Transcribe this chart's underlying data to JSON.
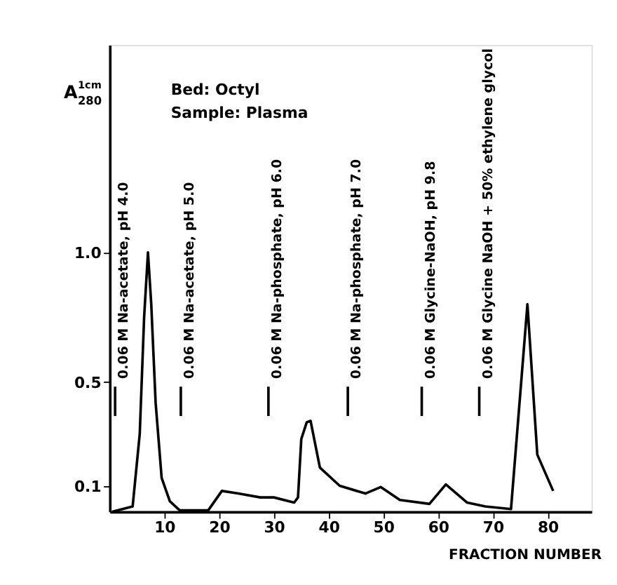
{
  "chart_data": {
    "type": "line",
    "title": "Bed: Octyl",
    "subtitle": "Sample: Plasma",
    "xlabel": "FRACTION NUMBER",
    "ylabel": "A$^{1cm}$$_{280}$",
    "x": [
      0.5,
      4.2,
      5.5,
      6.3,
      7.0,
      7.6,
      8.4,
      9.5,
      11.0,
      12.8,
      18.0,
      20.5,
      23.5,
      27.5,
      30.0,
      33.7,
      34.4,
      35.0,
      36.0,
      36.7,
      38.4,
      42.0,
      46.7,
      49.5,
      53.0,
      58.4,
      61.4,
      65.3,
      68.6,
      73.3,
      76.3,
      78.1,
      81.0
    ],
    "series": [
      {
        "color": "#000000",
        "values": [
          0.0,
          0.02,
          0.3,
          0.75,
          1.0,
          0.8,
          0.42,
          0.13,
          0.04,
          0.005,
          0.005,
          0.08,
          0.07,
          0.055,
          0.055,
          0.035,
          0.055,
          0.28,
          0.345,
          0.35,
          0.17,
          0.1,
          0.07,
          0.095,
          0.045,
          0.03,
          0.105,
          0.035,
          0.02,
          0.01,
          0.8,
          0.22,
          0.08
        ]
      }
    ],
    "xlim": [
      0,
      88
    ],
    "ylim": [
      0,
      1.8
    ],
    "xticks": [
      10,
      20,
      30,
      40,
      50,
      60,
      70,
      80
    ],
    "yticks": [
      0.1,
      0.5,
      {
        "value": 1.0,
        "label": "1.0"
      }
    ],
    "grid": false,
    "marker": "none",
    "line_style": "solid",
    "ref_lines": [
      {
        "axis": "x",
        "value": 1,
        "label": "0.06 M Na-acetate, pH 4.0"
      },
      {
        "axis": "x",
        "value": 13,
        "label": "0.06 M Na-acetate, pH 5.0"
      },
      {
        "axis": "x",
        "value": 29,
        "label": "0.06 M Na-phosphate, pH 6.0"
      },
      {
        "axis": "x",
        "value": 43.5,
        "label": "0.06 M Na-phosphate, pH 7.0"
      },
      {
        "axis": "x",
        "value": 57,
        "label": "0.06 M Glycine-NaOH, pH 9.8"
      },
      {
        "axis": "x",
        "value": 67.5,
        "label": "0.06 M Glycine NaOH + 50% ethylene glycol"
      }
    ]
  }
}
